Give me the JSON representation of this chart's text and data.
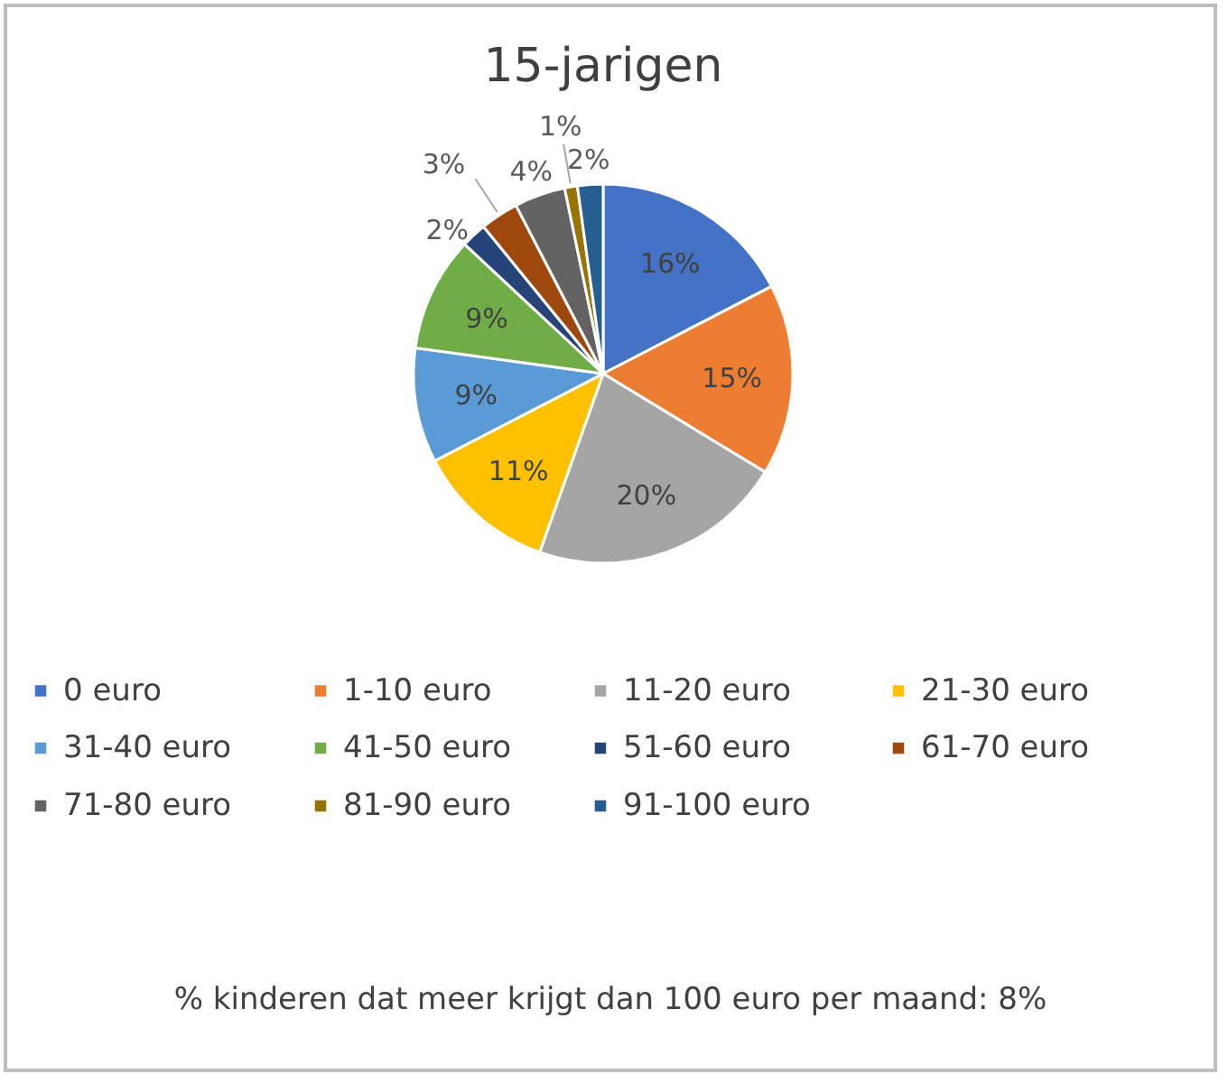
{
  "chart_data": {
    "type": "pie",
    "title": "15-jarigen",
    "categories": [
      "0 euro",
      "1-10 euro",
      "11-20 euro",
      "21-30 euro",
      "31-40 euro",
      "41-50 euro",
      "51-60 euro",
      "61-70 euro",
      "71-80 euro",
      "81-90 euro",
      "91-100 euro"
    ],
    "values": [
      16,
      15,
      20,
      11,
      9,
      9,
      2,
      3,
      4,
      1,
      2
    ],
    "value_labels": [
      "16%",
      "15%",
      "20%",
      "11%",
      "9%",
      "9%",
      "2%",
      "3%",
      "4%",
      "1%",
      "2%"
    ],
    "colors": [
      "#4472c4",
      "#ed7d31",
      "#a5a5a5",
      "#ffc000",
      "#5b9bd5",
      "#70ad47",
      "#264478",
      "#9e480e",
      "#636363",
      "#997300",
      "#255e91"
    ],
    "legend": "bottom",
    "annotations": [
      "% kinderen dat meer krijgt dan 100 euro per maand: 8%"
    ]
  }
}
